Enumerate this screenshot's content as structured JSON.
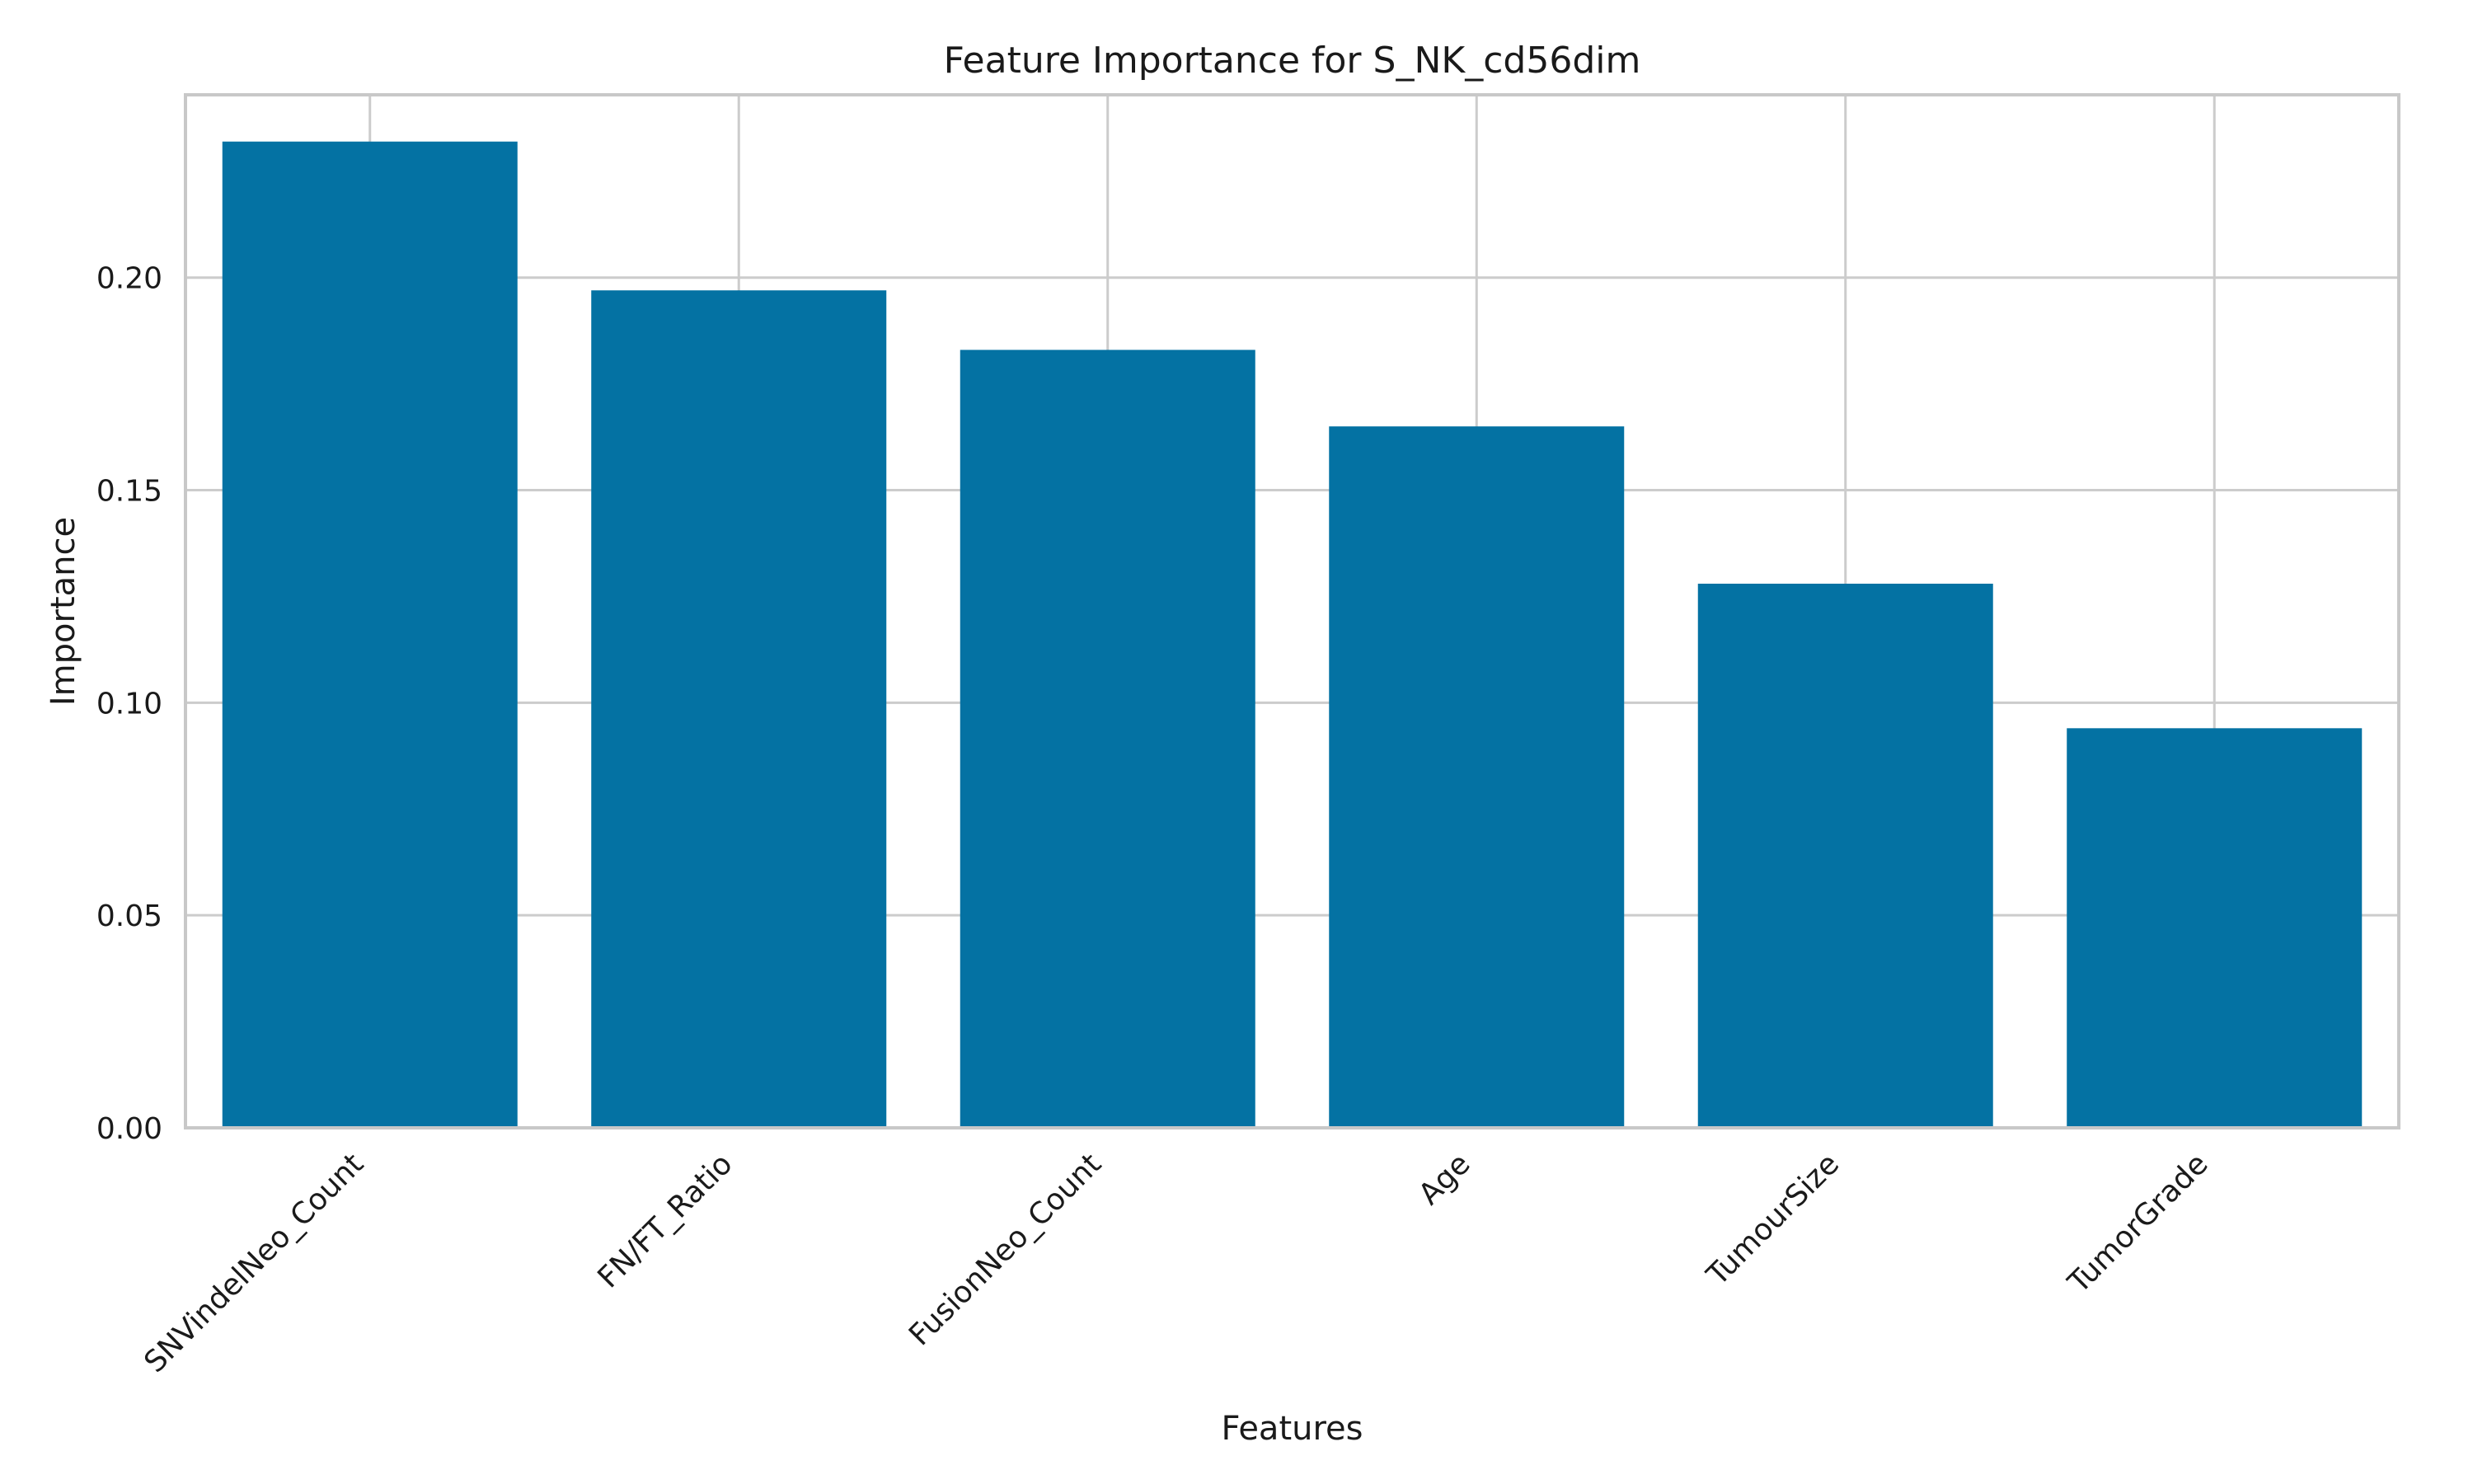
{
  "chart_data": {
    "type": "bar",
    "title": "Feature Importance for S_NK_cd56dim",
    "xlabel": "Features",
    "ylabel": "Importance",
    "categories": [
      "SNVindelNeo_Count",
      "FN/FT_Ratio",
      "FusionNeo_Count",
      "Age",
      "TumourSize",
      "TumorGrade"
    ],
    "values": [
      0.232,
      0.197,
      0.183,
      0.165,
      0.128,
      0.094
    ],
    "ylim": [
      0,
      0.243
    ],
    "yticks": [
      0.0,
      0.05,
      0.1,
      0.15,
      0.2
    ],
    "ytick_labels": [
      "0.00",
      "0.05",
      "0.10",
      "0.15",
      "0.20"
    ],
    "grid": true,
    "bar_color": "#0472a3",
    "grid_color": "#cccccc"
  }
}
